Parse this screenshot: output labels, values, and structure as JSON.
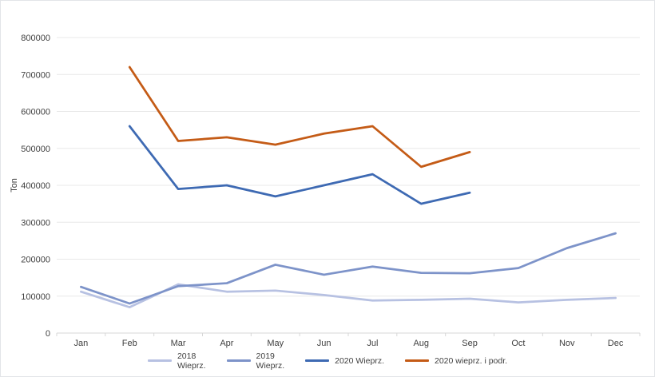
{
  "chart_data": {
    "type": "line",
    "title": "",
    "xlabel": "",
    "ylabel": "Ton",
    "categories": [
      "Jan",
      "Feb",
      "Mar",
      "Apr",
      "May",
      "Jun",
      "Jul",
      "Aug",
      "Sep",
      "Oct",
      "Nov",
      "Dec"
    ],
    "ylim": [
      0,
      800000
    ],
    "y_ticks": [
      0,
      100000,
      200000,
      300000,
      400000,
      500000,
      600000,
      700000,
      800000
    ],
    "grid": true,
    "legend_position": "bottom",
    "series": [
      {
        "name": "2018 Wieprz.",
        "color": "#b7c1e2",
        "values": [
          112000,
          70000,
          132000,
          112000,
          115000,
          103000,
          88000,
          90000,
          93000,
          83000,
          90000,
          95000
        ]
      },
      {
        "name": "2019 Wieprz.",
        "color": "#7d93c9",
        "values": [
          125000,
          80000,
          127000,
          135000,
          185000,
          158000,
          180000,
          163000,
          162000,
          176000,
          230000,
          270000
        ]
      },
      {
        "name": "2020 Wieprz.",
        "color": "#3e6ab3",
        "values": [
          null,
          560000,
          390000,
          400000,
          370000,
          400000,
          430000,
          350000,
          380000,
          null,
          null,
          null
        ]
      },
      {
        "name": "2020 wieprz. i podr.",
        "color": "#c45b16",
        "values": [
          null,
          720000,
          520000,
          530000,
          510000,
          540000,
          560000,
          450000,
          490000,
          null,
          null,
          null
        ]
      }
    ]
  },
  "legend": {
    "labels": [
      "2018\nWieprz.",
      "2019\nWieprz.",
      "2020 Wieprz.",
      "2020 wieprz. i podr."
    ]
  }
}
